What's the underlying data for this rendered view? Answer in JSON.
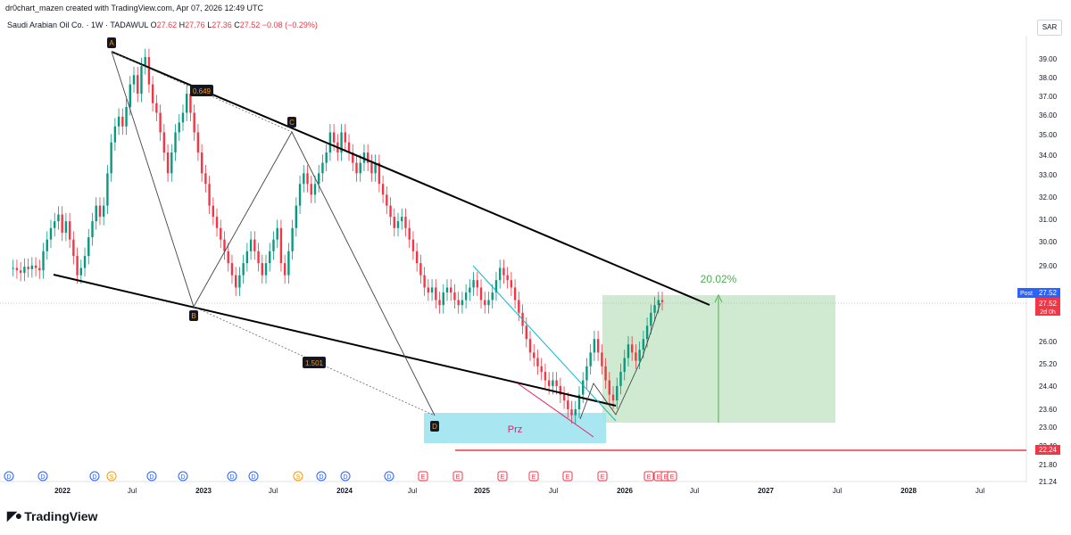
{
  "header": {
    "credit": "dr0chart_mazen created with TradingView.com, Apr 07, 2026 12:49 UTC",
    "symbol": "Saudi Arabian Oil Co. · 1W · TADAWUL",
    "open_label": "O",
    "open": "27.62",
    "high_label": "H",
    "high": "27.76",
    "low_label": "L",
    "low": "27.36",
    "close_label": "C",
    "close": "27.52",
    "change": "−0.08 (−0.29%)",
    "currency": "SAR"
  },
  "footer": {
    "logo_text": "TradingView"
  },
  "colors": {
    "up": "#089981",
    "down": "#f23645",
    "target_box": "#c8e6c9",
    "prz_box": "#9ee3f0",
    "support": "#f23645"
  },
  "chart_data": {
    "type": "candlestick",
    "y_axis": {
      "ticks": [
        "39.00",
        "38.00",
        "37.00",
        "36.00",
        "35.00",
        "34.00",
        "33.00",
        "32.00",
        "31.00",
        "30.00",
        "29.00",
        "26.00",
        "25.20",
        "24.40",
        "23.60",
        "23.00",
        "22.40",
        "21.80",
        "21.24"
      ],
      "scale": "log"
    },
    "x_axis": {
      "labels": [
        "2022",
        "Jul",
        "2023",
        "Jul",
        "2024",
        "Jul",
        "2025",
        "Jul",
        "2026",
        "Jul",
        "2027",
        "Jul",
        "2028",
        "Jul"
      ]
    },
    "price_labels": [
      {
        "text": "Post",
        "value": "27.52"
      },
      {
        "text": "",
        "value": "27.52"
      },
      {
        "text": "",
        "value": "2d 0h"
      },
      {
        "text": "",
        "value": "22.24"
      }
    ],
    "pattern_points": [
      {
        "label": "A",
        "price": 39.3
      },
      {
        "label": "B",
        "price": 27.85
      },
      {
        "label": "C",
        "price": 35.3
      },
      {
        "label": "D",
        "price": 23.2
      }
    ],
    "fib_labels": [
      "0.649",
      "1.501"
    ],
    "target_pct": "20.02%",
    "prz_label": "Prz",
    "events": [
      "D",
      "D",
      "D",
      "S",
      "D",
      "D",
      "D",
      "D",
      "S",
      "D",
      "D",
      "D",
      "E",
      "E",
      "E",
      "E",
      "E",
      "E",
      "E",
      "E",
      "E",
      "E",
      "E",
      "E",
      "E",
      "E"
    ],
    "candles": {
      "years_start": 2021.65,
      "close": [
        28.9,
        28.8,
        28.7,
        28.95,
        28.85,
        29.0,
        28.9,
        28.8,
        29.6,
        30.1,
        30.6,
        30.9,
        31.2,
        30.4,
        30.9,
        30.1,
        29.4,
        28.6,
        28.9,
        29.4,
        30.2,
        30.9,
        31.6,
        31.1,
        31.6,
        33.1,
        34.6,
        35.4,
        35.9,
        35.4,
        36.4,
        37.6,
        38.1,
        37.1,
        38.6,
        39.1,
        37.6,
        36.6,
        36.1,
        35.1,
        34.1,
        33.1,
        34.1,
        35.1,
        35.6,
        36.1,
        37.1,
        36.1,
        35.1,
        34.1,
        33.1,
        32.6,
        31.6,
        31.1,
        30.6,
        30.1,
        29.6,
        29.1,
        28.6,
        28.1,
        28.6,
        29.1,
        29.6,
        30.1,
        29.6,
        29.1,
        28.6,
        29.1,
        29.6,
        30.1,
        30.6,
        29.1,
        28.6,
        29.6,
        30.6,
        31.6,
        32.6,
        33.1,
        32.6,
        32.1,
        32.6,
        33.1,
        33.6,
        34.1,
        35.1,
        34.6,
        34.1,
        35.1,
        34.6,
        34.1,
        33.6,
        33.1,
        33.6,
        34.1,
        33.6,
        33.1,
        33.6,
        32.6,
        32.1,
        31.6,
        31.1,
        30.6,
        30.9,
        31.1,
        30.6,
        30.1,
        29.6,
        29.1,
        28.6,
        28.1,
        27.9,
        28.1,
        27.6,
        27.4,
        27.9,
        28.1,
        27.9,
        27.6,
        27.4,
        27.6,
        27.9,
        28.1,
        28.4,
        28.1,
        27.6,
        27.4,
        27.6,
        27.9,
        28.4,
        28.9,
        28.6,
        28.4,
        28.1,
        27.6,
        27.1,
        26.6,
        26.1,
        25.6,
        25.4,
        25.1,
        24.9,
        24.6,
        24.4,
        24.6,
        24.4,
        24.1,
        23.9,
        23.6,
        23.4,
        23.6,
        24.1,
        24.6,
        25.1,
        25.6,
        26.1,
        25.6,
        25.1,
        24.6,
        24.1,
        23.9,
        24.4,
        24.9,
        25.4,
        25.9,
        25.6,
        25.3,
        25.7,
        26.1,
        26.6,
        27.1,
        27.4,
        27.6,
        27.52
      ]
    }
  }
}
